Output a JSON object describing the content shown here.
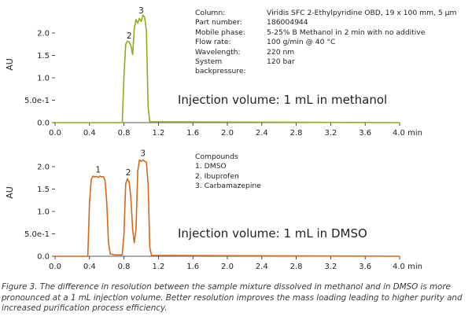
{
  "chart_data": [
    {
      "type": "line",
      "xlabel": "min",
      "ylabel": "AU",
      "xlim": [
        0,
        4.0
      ],
      "ylim": [
        0,
        2.45
      ],
      "x_ticks": [
        "0.0",
        "0.4",
        "0.8",
        "1.2",
        "1.6",
        "2.0",
        "2.4",
        "2.8",
        "3.2",
        "3.6",
        "4.0 min"
      ],
      "y_ticks": [
        "0.0",
        "5.0e-1",
        "1.0",
        "1.5",
        "2.0"
      ],
      "series": [
        {
          "color": "#8faa1e",
          "x": [
            0.0,
            0.78,
            0.8,
            0.82,
            0.84,
            0.86,
            0.88,
            0.9,
            0.92,
            0.94,
            0.96,
            0.98,
            1.0,
            1.02,
            1.04,
            1.06,
            1.08,
            1.1,
            4.0
          ],
          "y": [
            0.0,
            0.0,
            1.05,
            1.75,
            1.82,
            1.8,
            1.72,
            1.52,
            2.1,
            2.3,
            2.22,
            2.33,
            2.26,
            2.4,
            2.35,
            2.05,
            0.35,
            0.02,
            0.0
          ]
        }
      ],
      "annotations": [
        {
          "text": "2",
          "x": 0.86,
          "y": 1.88
        },
        {
          "text": "3",
          "x": 1.0,
          "y": 2.44
        },
        {
          "text": "Injection volume: 1 mL in methanol",
          "x": 1.38,
          "y": 0.6
        }
      ],
      "conditions": [
        {
          "label": "Column:",
          "value": "Viridis SFC 2-Ethylpyridine OBD, 19 x 100 mm, 5 µm"
        },
        {
          "label": "Part number:",
          "value": "186004944"
        },
        {
          "label": "Mobile phase:",
          "value": "5-25% B Methanol in 2 min with no additive"
        },
        {
          "label": "Flow rate:",
          "value": "100 g/min @ 40 °C"
        },
        {
          "label": "Wavelength:",
          "value": "220 nm"
        },
        {
          "label": "System backpressure:",
          "value": "120 bar"
        }
      ]
    },
    {
      "type": "line",
      "xlabel": "min",
      "ylabel": "AU",
      "xlim": [
        0,
        4.0
      ],
      "ylim": [
        0,
        2.2
      ],
      "x_ticks": [
        "0.0",
        "0.4",
        "0.8",
        "1.2",
        "1.6",
        "2.0",
        "2.4",
        "2.8",
        "3.2",
        "3.6",
        "4.0 min"
      ],
      "y_ticks": [
        "0.0",
        "5.0e-1",
        "1.0",
        "1.5",
        "2.0"
      ],
      "series": [
        {
          "color": "#d2691e",
          "x": [
            0.0,
            0.38,
            0.4,
            0.42,
            0.44,
            0.46,
            0.48,
            0.5,
            0.52,
            0.54,
            0.56,
            0.58,
            0.6,
            0.62,
            0.64,
            0.7,
            0.78,
            0.8,
            0.82,
            0.84,
            0.86,
            0.88,
            0.9,
            0.92,
            0.94,
            0.96,
            0.98,
            1.0,
            1.02,
            1.04,
            1.06,
            1.08,
            1.1,
            1.12,
            4.0
          ],
          "y": [
            0.0,
            0.0,
            1.2,
            1.72,
            1.79,
            1.77,
            1.78,
            1.76,
            1.79,
            1.77,
            1.78,
            1.7,
            1.2,
            0.3,
            0.05,
            0.03,
            0.03,
            0.5,
            1.62,
            1.73,
            1.65,
            1.3,
            0.6,
            0.3,
            0.6,
            1.9,
            2.15,
            2.12,
            2.15,
            2.12,
            2.1,
            1.6,
            0.2,
            0.02,
            0.0
          ]
        }
      ],
      "annotations": [
        {
          "text": "1",
          "x": 0.5,
          "y": 1.87
        },
        {
          "text": "2",
          "x": 0.85,
          "y": 1.81
        },
        {
          "text": "3",
          "x": 1.02,
          "y": 2.24
        },
        {
          "text": "Injection volume: 1 mL in DMSO",
          "x": 1.38,
          "y": 0.6
        }
      ],
      "compounds_title": "Compounds",
      "compounds": [
        "1. DMSO",
        "2. Ibuprofen",
        "3. Carbamazepine"
      ]
    }
  ],
  "caption": "Figure 3. The difference in resolution between the sample mixture dissolved in methanol and in DMSO is more pronounced at a 1 mL injection volume. Better resolution improves the mass loading leading to higher purity and increased purification process efficiency."
}
